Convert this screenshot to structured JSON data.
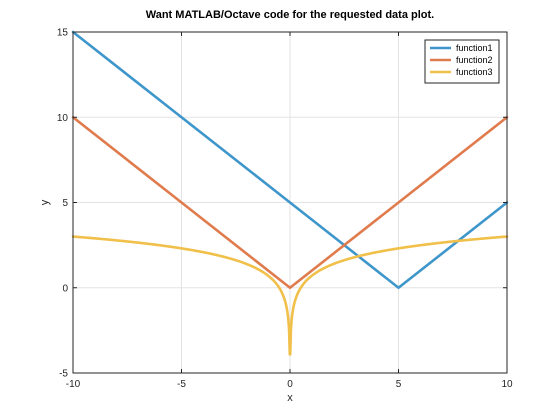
{
  "chart_data": {
    "type": "line",
    "title": "Want MATLAB/Octave code for the requested data plot.",
    "xlabel": "x",
    "ylabel": "y",
    "xlim": [
      -10,
      10
    ],
    "ylim": [
      -5,
      15
    ],
    "grid": true,
    "legend_position": "top-right",
    "xticks": [
      "-10",
      "-5",
      "0",
      "5",
      "10"
    ],
    "yticks": [
      "-5",
      "0",
      "5",
      "10",
      "15"
    ],
    "series": [
      {
        "name": "function1",
        "color": "#3e96cb",
        "x": [
          -10,
          -5,
          0,
          5,
          10
        ],
        "y": [
          15,
          10,
          5,
          0,
          5
        ]
      },
      {
        "name": "function2",
        "color": "#e07b4d",
        "x": [
          -10,
          -5,
          0,
          5,
          10
        ],
        "y": [
          10,
          5,
          0,
          5,
          10
        ]
      },
      {
        "name": "function3",
        "color": "#f0c04a",
        "formula": "ln|x|+0.7",
        "x": [
          -10,
          -8,
          -6,
          -4,
          -2,
          -1,
          -0.5,
          -0.2,
          -0.1,
          -0.05,
          -0.02,
          -0.01,
          0.01,
          0.02,
          0.05,
          0.1,
          0.2,
          0.5,
          1,
          2,
          4,
          6,
          8,
          10
        ],
        "y": [
          3.0,
          2.78,
          2.49,
          2.09,
          1.39,
          0.7,
          0.01,
          -0.91,
          -1.6,
          -2.3,
          -3.21,
          -3.91,
          -3.91,
          -3.21,
          -2.3,
          -1.6,
          -0.91,
          0.01,
          0.7,
          1.39,
          2.09,
          2.49,
          2.78,
          3.0
        ]
      }
    ]
  }
}
